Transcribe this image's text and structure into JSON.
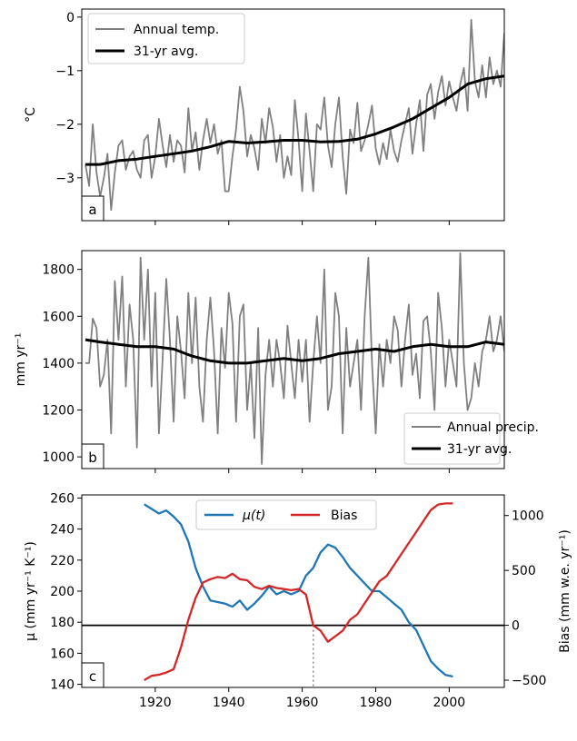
{
  "chart_data": [
    {
      "panel": "a",
      "type": "line",
      "ylabel": "°C",
      "xlim": [
        1900,
        2015
      ],
      "ylim": [
        -3.8,
        0.15
      ],
      "yticks": [
        0,
        -1,
        -2,
        -3
      ],
      "ytick_labels": [
        "0",
        "−1",
        "−2",
        "−3"
      ],
      "xticks": [
        1920,
        1940,
        1960,
        1980,
        2000
      ],
      "legend_placement": "top-left",
      "series": [
        {
          "name": "Annual temp.",
          "color": "#808080",
          "x": [
            1901,
            1902,
            1903,
            1904,
            1905,
            1906,
            1907,
            1908,
            1909,
            1910,
            1911,
            1912,
            1913,
            1914,
            1915,
            1916,
            1917,
            1918,
            1919,
            1920,
            1921,
            1922,
            1923,
            1924,
            1925,
            1926,
            1927,
            1928,
            1929,
            1930,
            1931,
            1932,
            1933,
            1934,
            1935,
            1936,
            1937,
            1938,
            1939,
            1940,
            1941,
            1942,
            1943,
            1944,
            1945,
            1946,
            1947,
            1948,
            1949,
            1950,
            1951,
            1952,
            1953,
            1954,
            1955,
            1956,
            1957,
            1958,
            1959,
            1960,
            1961,
            1962,
            1963,
            1964,
            1965,
            1966,
            1967,
            1968,
            1969,
            1970,
            1971,
            1972,
            1973,
            1974,
            1975,
            1976,
            1977,
            1978,
            1979,
            1980,
            1981,
            1982,
            1983,
            1984,
            1985,
            1986,
            1987,
            1988,
            1989,
            1990,
            1991,
            1992,
            1993,
            1994,
            1995,
            1996,
            1997,
            1998,
            1999,
            2000,
            2001,
            2002,
            2003,
            2004,
            2005,
            2006,
            2007,
            2008,
            2009,
            2010,
            2011,
            2012,
            2013,
            2014,
            2015
          ],
          "y": [
            -2.75,
            -3.15,
            -2.0,
            -2.9,
            -3.35,
            -3.0,
            -2.55,
            -3.6,
            -2.9,
            -2.4,
            -2.3,
            -2.85,
            -2.6,
            -2.5,
            -2.85,
            -3.0,
            -2.3,
            -2.2,
            -3.0,
            -2.6,
            -1.9,
            -2.4,
            -2.8,
            -2.2,
            -2.7,
            -2.3,
            -2.4,
            -2.9,
            -1.7,
            -2.5,
            -2.15,
            -2.85,
            -2.3,
            -1.9,
            -2.35,
            -2.0,
            -2.55,
            -2.3,
            -3.25,
            -3.25,
            -2.6,
            -2.1,
            -1.3,
            -1.75,
            -2.6,
            -2.2,
            -2.45,
            -2.85,
            -1.9,
            -2.35,
            -1.7,
            -2.05,
            -2.7,
            -2.2,
            -3.0,
            -2.6,
            -2.95,
            -1.55,
            -2.3,
            -3.25,
            -1.8,
            -2.5,
            -3.25,
            -2.0,
            -2.1,
            -1.5,
            -2.4,
            -2.8,
            -2.0,
            -1.5,
            -2.6,
            -3.3,
            -2.1,
            -2.35,
            -1.6,
            -2.5,
            -2.3,
            -2.0,
            -1.65,
            -2.45,
            -2.75,
            -2.35,
            -2.65,
            -2.1,
            -2.5,
            -2.7,
            -2.3,
            -2.0,
            -1.7,
            -2.55,
            -2.0,
            -1.55,
            -2.5,
            -1.45,
            -1.25,
            -1.9,
            -1.4,
            -1.1,
            -1.65,
            -1.2,
            -1.5,
            -1.75,
            -1.25,
            -0.95,
            -1.75,
            -0.05,
            -1.2,
            -1.5,
            -0.9,
            -1.5,
            -0.75,
            -1.25,
            -1.0,
            -1.3,
            -0.3
          ]
        },
        {
          "name": "31-yr avg.",
          "color": "#000000",
          "x": [
            1901,
            1905,
            1910,
            1915,
            1920,
            1925,
            1930,
            1935,
            1940,
            1945,
            1950,
            1955,
            1960,
            1965,
            1970,
            1975,
            1980,
            1985,
            1990,
            1995,
            2000,
            2005,
            2010,
            2015
          ],
          "y": [
            -2.75,
            -2.75,
            -2.68,
            -2.65,
            -2.6,
            -2.55,
            -2.5,
            -2.42,
            -2.32,
            -2.35,
            -2.33,
            -2.3,
            -2.3,
            -2.33,
            -2.32,
            -2.28,
            -2.18,
            -2.05,
            -1.9,
            -1.7,
            -1.5,
            -1.25,
            -1.15,
            -1.1
          ]
        }
      ]
    },
    {
      "panel": "b",
      "type": "line",
      "ylabel": "mm yr⁻¹",
      "xlim": [
        1900,
        2015
      ],
      "ylim": [
        950,
        1880
      ],
      "yticks": [
        1000,
        1200,
        1400,
        1600,
        1800
      ],
      "ytick_labels": [
        "1000",
        "1200",
        "1400",
        "1600",
        "1800"
      ],
      "xticks": [
        1920,
        1940,
        1960,
        1980,
        2000
      ],
      "legend_placement": "bottom-right",
      "series": [
        {
          "name": "Annual precip.",
          "color": "#808080",
          "x": [
            1901,
            1902,
            1903,
            1904,
            1905,
            1906,
            1907,
            1908,
            1909,
            1910,
            1911,
            1912,
            1913,
            1914,
            1915,
            1916,
            1917,
            1918,
            1919,
            1920,
            1921,
            1922,
            1923,
            1924,
            1925,
            1926,
            1927,
            1928,
            1929,
            1930,
            1931,
            1932,
            1933,
            1934,
            1935,
            1936,
            1937,
            1938,
            1939,
            1940,
            1941,
            1942,
            1943,
            1944,
            1945,
            1946,
            1947,
            1948,
            1949,
            1950,
            1951,
            1952,
            1953,
            1954,
            1955,
            1956,
            1957,
            1958,
            1959,
            1960,
            1961,
            1962,
            1963,
            1964,
            1965,
            1966,
            1967,
            1968,
            1969,
            1970,
            1971,
            1972,
            1973,
            1974,
            1975,
            1976,
            1977,
            1978,
            1979,
            1980,
            1981,
            1982,
            1983,
            1984,
            1985,
            1986,
            1987,
            1988,
            1989,
            1990,
            1991,
            1992,
            1993,
            1994,
            1995,
            1996,
            1997,
            1998,
            1999,
            2000,
            2001,
            2002,
            2003,
            2004,
            2005,
            2006,
            2007,
            2008,
            2009,
            2010,
            2011,
            2012,
            2013,
            2014,
            2015
          ],
          "y": [
            1400,
            1400,
            1590,
            1550,
            1300,
            1350,
            1500,
            1100,
            1750,
            1500,
            1770,
            1300,
            1650,
            1500,
            1040,
            1850,
            1500,
            1800,
            1300,
            1700,
            1100,
            1420,
            1760,
            1500,
            1150,
            1600,
            1450,
            1250,
            1700,
            1400,
            1680,
            1300,
            1150,
            1500,
            1680,
            1450,
            1100,
            1550,
            1380,
            1700,
            1570,
            1150,
            1600,
            1650,
            1200,
            1400,
            1080,
            1550,
            970,
            1350,
            1500,
            1300,
            1500,
            1400,
            1250,
            1560,
            1400,
            1250,
            1500,
            1320,
            1500,
            1150,
            1400,
            1600,
            1400,
            1800,
            1200,
            1300,
            1700,
            1600,
            1100,
            1550,
            1300,
            1400,
            1500,
            1200,
            1600,
            1850,
            1400,
            1100,
            1480,
            1300,
            1500,
            1400,
            1600,
            1540,
            1300,
            1500,
            1650,
            1350,
            1440,
            1250,
            1580,
            1600,
            1450,
            1200,
            1700,
            1550,
            1300,
            1500,
            1400,
            1300,
            1870,
            1400,
            1200,
            1250,
            1400,
            1300,
            1450,
            1500,
            1600,
            1450,
            1500,
            1600,
            1450
          ]
        },
        {
          "name": "31-yr avg.",
          "color": "#000000",
          "x": [
            1901,
            1905,
            1910,
            1915,
            1920,
            1925,
            1930,
            1935,
            1940,
            1945,
            1950,
            1955,
            1960,
            1965,
            1970,
            1975,
            1980,
            1985,
            1990,
            1995,
            2000,
            2005,
            2010,
            2015
          ],
          "y": [
            1500,
            1490,
            1480,
            1470,
            1470,
            1460,
            1430,
            1410,
            1400,
            1400,
            1410,
            1420,
            1410,
            1420,
            1440,
            1450,
            1460,
            1450,
            1470,
            1480,
            1470,
            1470,
            1490,
            1480
          ]
        }
      ]
    },
    {
      "panel": "c",
      "type": "line",
      "ylabel": "μ (mm yr⁻¹ K⁻¹)",
      "ylabel_right": "Bias (mm w.e. yr⁻¹)",
      "xlim": [
        1900,
        2015
      ],
      "ylim": [
        138,
        262
      ],
      "ylim_right": [
        -566,
        1188
      ],
      "yticks": [
        140,
        160,
        180,
        200,
        220,
        240,
        260
      ],
      "ytick_labels": [
        "140",
        "160",
        "180",
        "200",
        "220",
        "240",
        "260"
      ],
      "yticks_right": [
        -500,
        0,
        500,
        1000
      ],
      "ytick_labels_right": [
        "−500",
        "0",
        "500",
        "1000"
      ],
      "xticks": [
        1920,
        1940,
        1960,
        1980,
        2000
      ],
      "xtick_labels": [
        "1920",
        "1940",
        "1960",
        "1980",
        "2000"
      ],
      "hline_right": 0,
      "vline_x": 1963,
      "legend_placement": "top-center",
      "series": [
        {
          "name": "μ(t)",
          "axis": "left",
          "color": "#1f77b4",
          "x": [
            1917,
            1919,
            1921,
            1923,
            1925,
            1927,
            1929,
            1931,
            1933,
            1935,
            1937,
            1939,
            1941,
            1943,
            1945,
            1947,
            1949,
            1951,
            1953,
            1955,
            1957,
            1959,
            1961,
            1963,
            1965,
            1967,
            1969,
            1971,
            1973,
            1975,
            1977,
            1979,
            1981,
            1983,
            1985,
            1987,
            1989,
            1991,
            1993,
            1995,
            1997,
            1999,
            2001
          ],
          "y": [
            256,
            253,
            250,
            252,
            248,
            243,
            232,
            215,
            203,
            194,
            193,
            192,
            190,
            194,
            188,
            192,
            197,
            203,
            198,
            200,
            198,
            200,
            210,
            215,
            225,
            230,
            228,
            222,
            215,
            210,
            205,
            200,
            200,
            196,
            192,
            188,
            180,
            175,
            165,
            155,
            150,
            146,
            145
          ]
        },
        {
          "name": "Bias",
          "axis": "right",
          "color": "#d62728",
          "x": [
            1917,
            1919,
            1921,
            1923,
            1925,
            1927,
            1929,
            1931,
            1933,
            1935,
            1937,
            1939,
            1941,
            1943,
            1945,
            1947,
            1949,
            1951,
            1953,
            1955,
            1957,
            1959,
            1961,
            1963,
            1965,
            1967,
            1969,
            1971,
            1973,
            1975,
            1977,
            1979,
            1981,
            1983,
            1985,
            1987,
            1989,
            1991,
            1993,
            1995,
            1997,
            1999,
            2001
          ],
          "y": [
            -500,
            -460,
            -450,
            -430,
            -400,
            -200,
            50,
            250,
            390,
            420,
            440,
            430,
            470,
            420,
            410,
            350,
            330,
            360,
            340,
            330,
            320,
            330,
            280,
            0,
            -50,
            -150,
            -100,
            -50,
            50,
            100,
            200,
            300,
            400,
            450,
            550,
            650,
            750,
            850,
            950,
            1050,
            1100,
            1110,
            1110
          ]
        }
      ]
    }
  ],
  "panel_labels": {
    "a": "a",
    "b": "b",
    "c": "c"
  },
  "legends": {
    "a": [
      "Annual temp.",
      "31-yr avg."
    ],
    "b": [
      "Annual precip.",
      "31-yr avg."
    ],
    "c": [
      "μ(t)",
      "Bias"
    ]
  }
}
